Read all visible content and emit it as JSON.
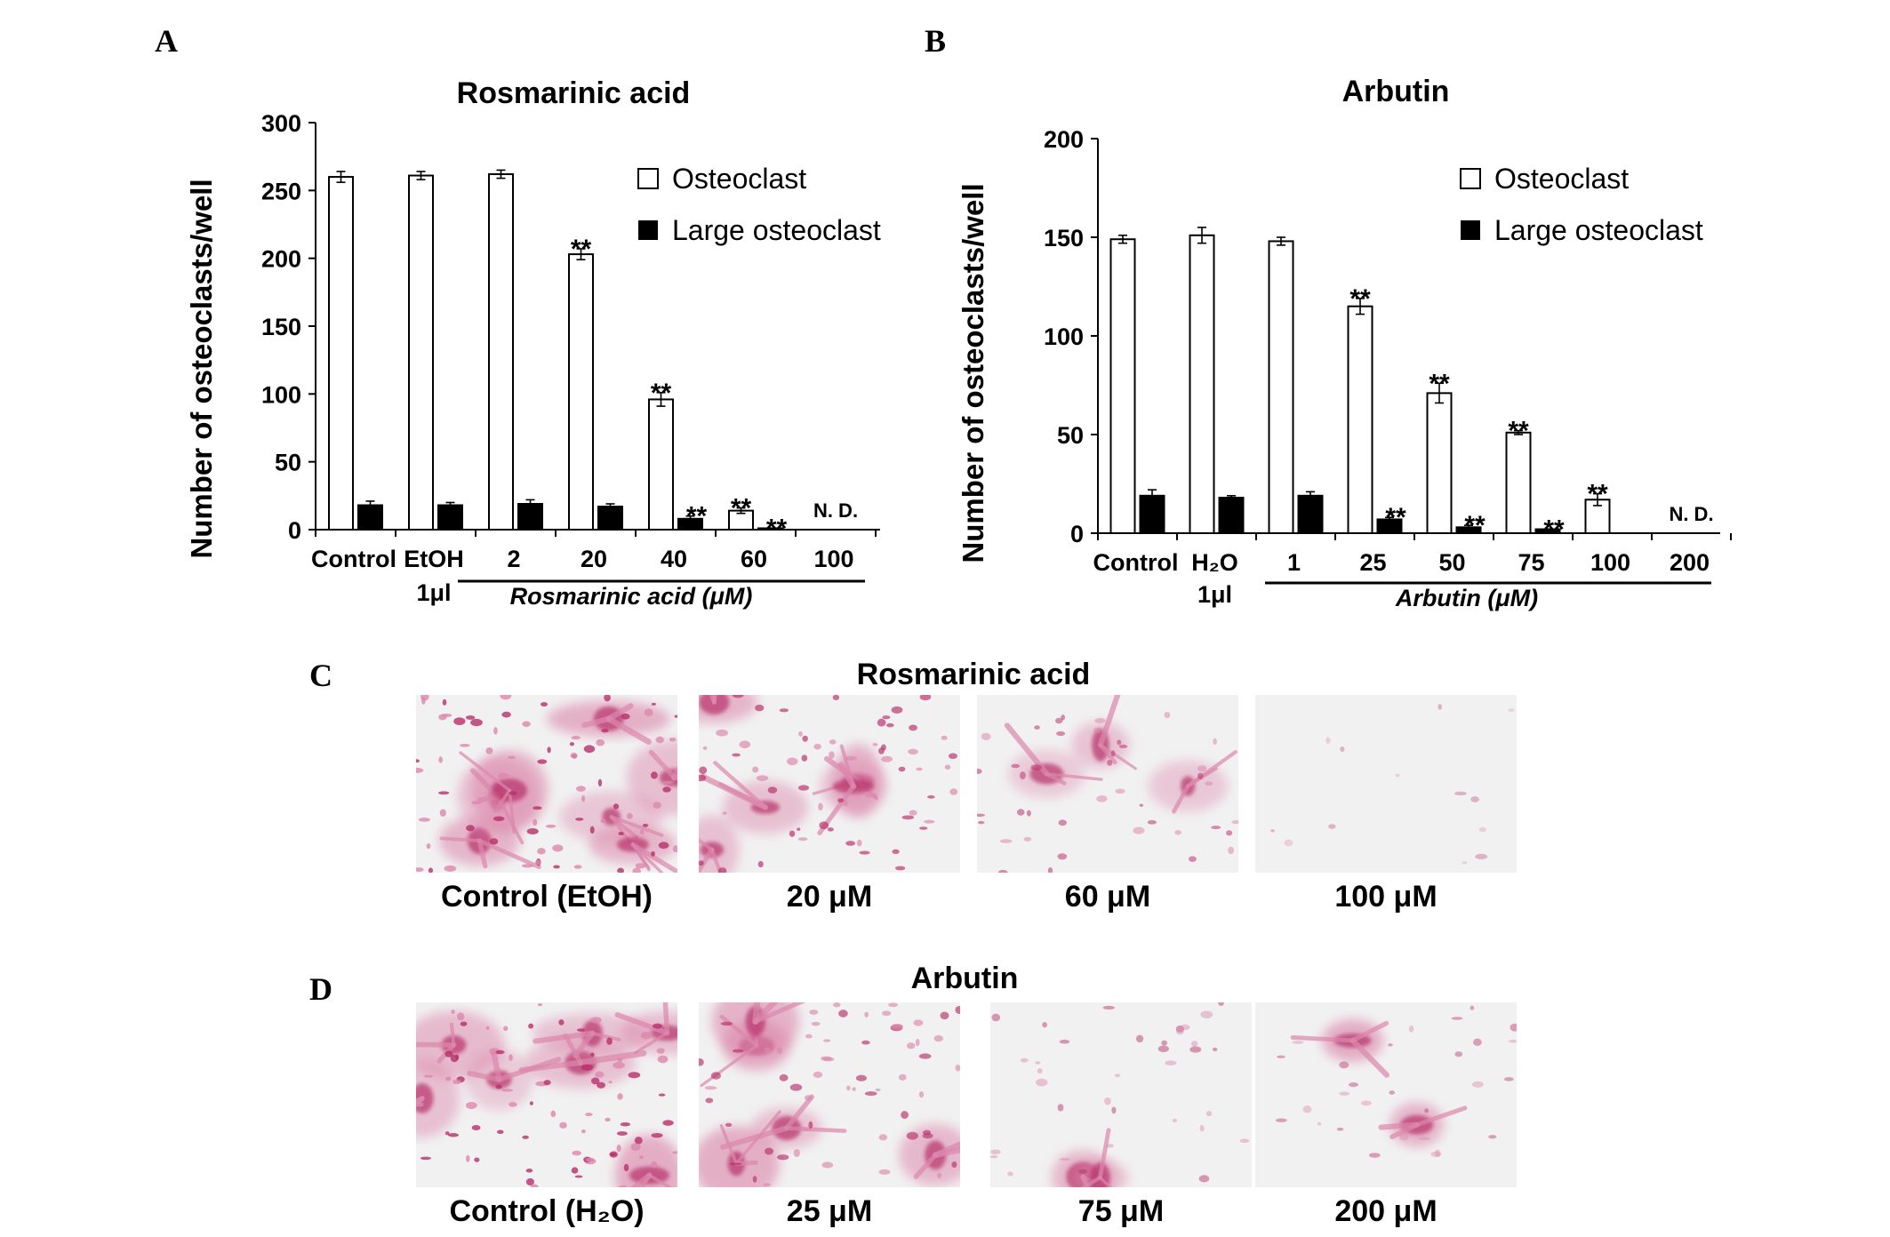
{
  "panels": {
    "a": "A",
    "b": "B",
    "c": "C",
    "d": "D"
  },
  "legend": {
    "open": "Osteoclast",
    "filled": "Large osteoclast"
  },
  "chart_data": [
    {
      "type": "bar",
      "title": "Rosmarinic acid",
      "ylabel": "Number of osteoclasts/well",
      "ylim": [
        0,
        300
      ],
      "yticks": [
        "0",
        "50",
        "100",
        "150",
        "200",
        "250",
        "300"
      ],
      "categories": [
        "Control",
        "EtOH",
        "2",
        "20",
        "40",
        "60",
        "100"
      ],
      "category_sub": [
        "",
        "1μl",
        "",
        "",
        "",
        "",
        ""
      ],
      "group_label": "Rosmarinic acid (μM)",
      "series": [
        {
          "name": "Osteoclast",
          "values": [
            260,
            261,
            262,
            203,
            96,
            14,
            0
          ],
          "errors": [
            4,
            3,
            3,
            4,
            5,
            2,
            0
          ]
        },
        {
          "name": "Large osteoclast",
          "values": [
            18,
            18,
            19,
            17,
            8,
            1,
            0
          ],
          "errors": [
            3,
            2,
            3,
            2,
            2,
            0,
            0
          ]
        }
      ],
      "annotations": [
        {
          "category": "20",
          "series": "Osteoclast",
          "text": "**"
        },
        {
          "category": "40",
          "series": "Osteoclast",
          "text": "**"
        },
        {
          "category": "40",
          "series": "Large osteoclast",
          "text": "**"
        },
        {
          "category": "60",
          "series": "Osteoclast",
          "text": "**"
        },
        {
          "category": "60",
          "series": "Large osteoclast",
          "text": "**"
        },
        {
          "category": "100",
          "series": "both",
          "text": "N. D."
        }
      ]
    },
    {
      "type": "bar",
      "title": "Arbutin",
      "ylabel": "Number of osteoclasts/well",
      "ylim": [
        0,
        200
      ],
      "yticks": [
        "0",
        "50",
        "100",
        "150",
        "200"
      ],
      "categories": [
        "Control",
        "H₂O",
        "1",
        "25",
        "50",
        "75",
        "100",
        "200"
      ],
      "category_sub": [
        "",
        "1μl",
        "",
        "",
        "",
        "",
        "",
        ""
      ],
      "group_label": "Arbutin (μM)",
      "series": [
        {
          "name": "Osteoclast",
          "values": [
            149,
            151,
            148,
            115,
            71,
            51,
            17,
            0
          ],
          "errors": [
            2,
            4,
            2,
            4,
            5,
            1,
            3,
            0
          ]
        },
        {
          "name": "Large osteoclast",
          "values": [
            19,
            18,
            19,
            7,
            3,
            2,
            0,
            0
          ],
          "errors": [
            3,
            1,
            2,
            1,
            1,
            0,
            0,
            0
          ]
        }
      ],
      "annotations": [
        {
          "category": "25",
          "series": "Osteoclast",
          "text": "**"
        },
        {
          "category": "25",
          "series": "Large osteoclast",
          "text": "**"
        },
        {
          "category": "50",
          "series": "Osteoclast",
          "text": "**"
        },
        {
          "category": "50",
          "series": "Large osteoclast",
          "text": "**"
        },
        {
          "category": "75",
          "series": "Osteoclast",
          "text": "**"
        },
        {
          "category": "75",
          "series": "Large osteoclast",
          "text": "**"
        },
        {
          "category": "100",
          "series": "Osteoclast",
          "text": "**"
        },
        {
          "category": "200",
          "series": "both",
          "text": "N. D."
        }
      ]
    }
  ],
  "micrographs": {
    "c": {
      "title": "Rosmarinic acid",
      "captions": [
        "Control (EtOH)",
        "20 μM",
        "60 μM",
        "100 μM"
      ],
      "density": [
        1,
        0.75,
        0.45,
        0.04
      ]
    },
    "d": {
      "title": "Arbutin",
      "captions": [
        "Control (H₂O)",
        "25 μM",
        "75 μM",
        "200 μM"
      ],
      "density": [
        1,
        0.7,
        0.35,
        0.25
      ]
    }
  },
  "colors": {
    "cell_magenta": "#b8306b",
    "cell_pink": "#dc88ac",
    "background_photo": "#f1f1f1"
  }
}
